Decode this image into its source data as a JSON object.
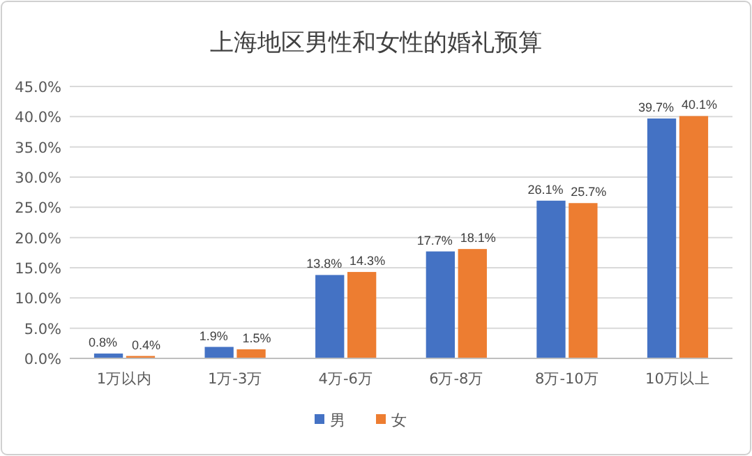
{
  "chart_data": {
    "type": "bar",
    "title": "上海地区男性和女性的婚礼预算",
    "categories": [
      "1万以内",
      "1万-3万",
      "4万-6万",
      "6万-8万",
      "8万-10万",
      "10万以上"
    ],
    "series": [
      {
        "name": "男",
        "color": "#4472c4",
        "values": [
          0.8,
          1.9,
          13.8,
          17.7,
          26.1,
          39.7
        ],
        "value_labels": [
          "0.8%",
          "1.9%",
          "13.8%",
          "17.7%",
          "26.1%",
          "39.7%"
        ]
      },
      {
        "name": "女",
        "color": "#ed7d31",
        "values": [
          0.4,
          1.5,
          14.3,
          18.1,
          25.7,
          40.1
        ],
        "value_labels": [
          "0.4%",
          "1.5%",
          "14.3%",
          "18.1%",
          "25.7%",
          "40.1%"
        ]
      }
    ],
    "ylim": [
      0,
      45
    ],
    "yticks": [
      {
        "value": 0,
        "label": "0.0%"
      },
      {
        "value": 5,
        "label": "5.0%"
      },
      {
        "value": 10,
        "label": "10.0%"
      },
      {
        "value": 15,
        "label": "15.0%"
      },
      {
        "value": 20,
        "label": "20.0%"
      },
      {
        "value": 25,
        "label": "25.0%"
      },
      {
        "value": 30,
        "label": "30.0%"
      },
      {
        "value": 35,
        "label": "35.0%"
      },
      {
        "value": 40,
        "label": "40.0%"
      },
      {
        "value": 45,
        "label": "45.0%"
      }
    ],
    "grid": "y",
    "legend": "bottom"
  }
}
